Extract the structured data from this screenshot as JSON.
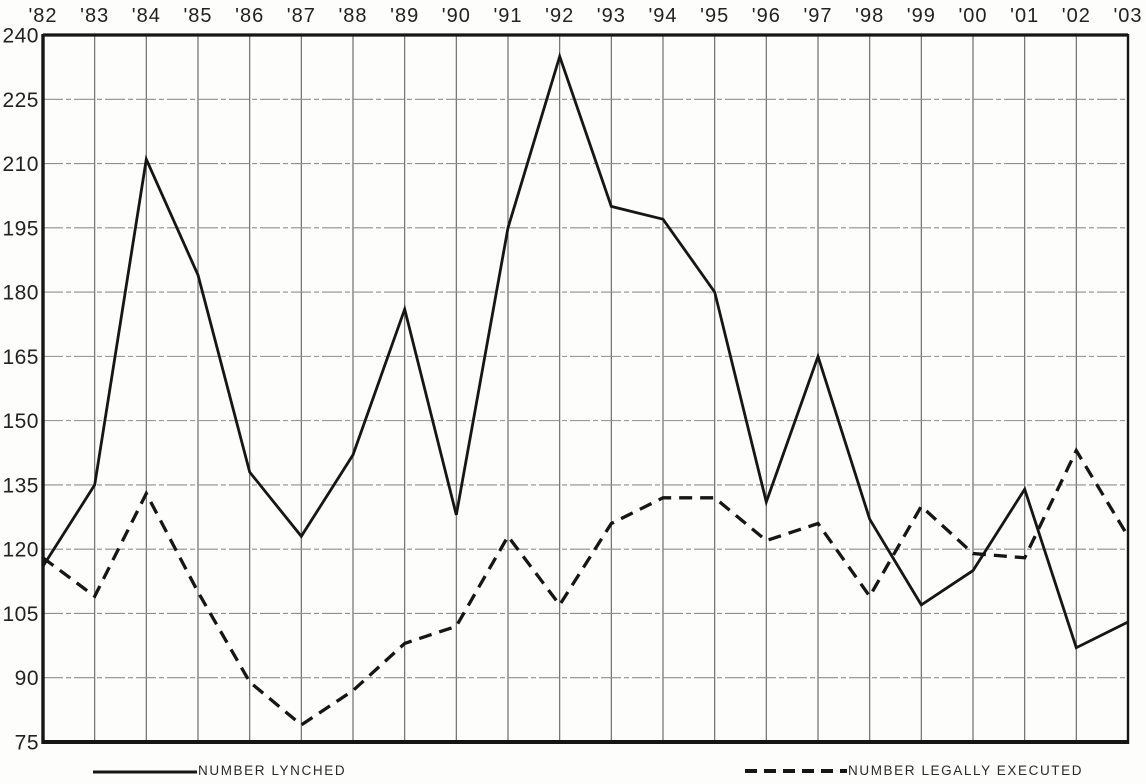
{
  "chart_data": {
    "type": "line",
    "title": "",
    "categories": [
      "'82",
      "'83",
      "'84",
      "'85",
      "'86",
      "'87",
      "'88",
      "'89",
      "'90",
      "'91",
      "'92",
      "'93",
      "'94",
      "'95",
      "'96",
      "'97",
      "'98",
      "'99",
      "'00",
      "'01",
      "'02",
      "'03"
    ],
    "series": [
      {
        "name": "NUMBER LYNCHED",
        "style": "solid",
        "values": [
          116,
          135,
          211,
          184,
          138,
          123,
          142,
          176,
          128,
          195,
          235,
          200,
          197,
          180,
          131,
          165,
          127,
          107,
          115,
          134,
          97,
          103
        ]
      },
      {
        "name": "NUMBER LEGALLY EXECUTED",
        "style": "dashed",
        "values": [
          118,
          109,
          133,
          110,
          89,
          79,
          87,
          98,
          102,
          123,
          107,
          126,
          132,
          132,
          122,
          126,
          109,
          130,
          119,
          118,
          143,
          123
        ]
      }
    ],
    "xlabel": "",
    "ylabel": "",
    "ylim": [
      75,
      240
    ],
    "yticks": [
      240,
      225,
      210,
      195,
      180,
      165,
      150,
      135,
      120,
      105,
      90,
      75
    ],
    "x_axis_position": "top",
    "grid": true,
    "legend_position": "bottom"
  },
  "colors": {
    "ink": "#161616",
    "grid_vertical": "#6e6e6e",
    "grid_horizontal": "#8f8f8f",
    "label_text": "#222222",
    "paper": "#fdfdfb"
  }
}
